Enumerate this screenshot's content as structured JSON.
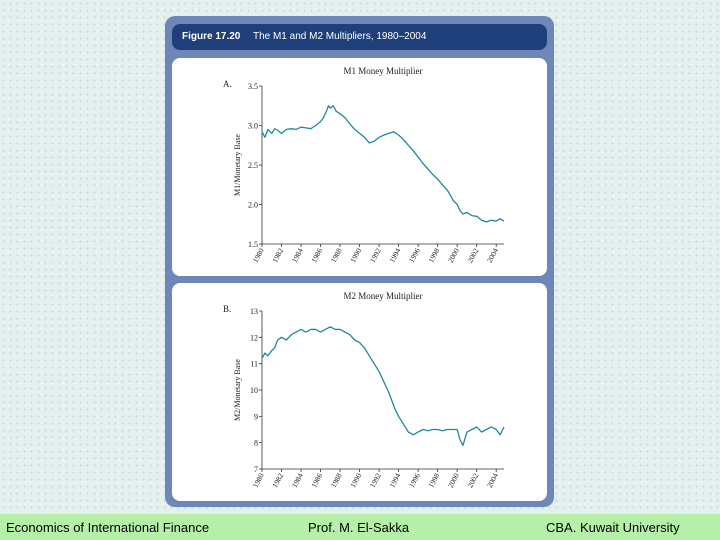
{
  "figure": {
    "number": "Figure 17.20",
    "title": "The M1 and M2 Multipliers, 1980–2004"
  },
  "footer": {
    "left": "Economics of International Finance",
    "center": "Prof. M. El-Sakka",
    "right": "CBA. Kuwait University"
  },
  "chart_data": [
    {
      "type": "line",
      "panel_label": "A.",
      "title": "M1 Money Multiplier",
      "xlabel": "",
      "ylabel": "M1/Monetary Base",
      "xlim": [
        1980,
        2004.8
      ],
      "ylim": [
        1.5,
        3.5
      ],
      "yticks": [
        1.5,
        2.0,
        2.5,
        3.0,
        3.5
      ],
      "ytick_labels": [
        "1.5",
        "2.0",
        "2.5",
        "3.0",
        "3.5"
      ],
      "xticks": [
        1980,
        1982,
        1984,
        1986,
        1988,
        1990,
        1992,
        1994,
        1996,
        1998,
        2000,
        2002,
        2004
      ],
      "line_color": "#1e8a9a",
      "x": [
        1980,
        1980.3,
        1980.6,
        1981,
        1981.3,
        1981.6,
        1982,
        1982.5,
        1983,
        1983.5,
        1984,
        1984.5,
        1985,
        1985.5,
        1986,
        1986.3,
        1986.6,
        1986.8,
        1987,
        1987.3,
        1987.6,
        1988,
        1988.5,
        1989,
        1989.5,
        1990,
        1990.5,
        1991,
        1991.5,
        1992,
        1992.5,
        1993,
        1993.5,
        1994,
        1994.5,
        1995,
        1995.5,
        1996,
        1996.5,
        1997,
        1997.5,
        1998,
        1998.5,
        1999,
        1999.3,
        1999.6,
        2000,
        2000.3,
        2000.6,
        2001,
        2001.5,
        2002,
        2002.5,
        2003,
        2003.5,
        2004,
        2004.4,
        2004.8
      ],
      "y": [
        2.92,
        2.85,
        2.95,
        2.9,
        2.96,
        2.94,
        2.9,
        2.95,
        2.96,
        2.95,
        2.98,
        2.97,
        2.96,
        3.0,
        3.05,
        3.1,
        3.18,
        3.25,
        3.22,
        3.25,
        3.18,
        3.15,
        3.1,
        3.02,
        2.95,
        2.9,
        2.85,
        2.78,
        2.8,
        2.85,
        2.88,
        2.9,
        2.92,
        2.88,
        2.82,
        2.75,
        2.68,
        2.6,
        2.52,
        2.45,
        2.38,
        2.32,
        2.25,
        2.18,
        2.12,
        2.05,
        2.0,
        1.92,
        1.88,
        1.9,
        1.86,
        1.85,
        1.8,
        1.78,
        1.8,
        1.79,
        1.82,
        1.79
      ]
    },
    {
      "type": "line",
      "panel_label": "B.",
      "title": "M2 Money Multiplier",
      "xlabel": "",
      "ylabel": "M2/Monetary Base",
      "xlim": [
        1980,
        2004.8
      ],
      "ylim": [
        7,
        13
      ],
      "yticks": [
        7,
        8,
        9,
        10,
        11,
        12,
        13
      ],
      "ytick_labels": [
        "7",
        "8",
        "9",
        "10",
        "11",
        "12",
        "13"
      ],
      "xticks": [
        1980,
        1982,
        1984,
        1986,
        1988,
        1990,
        1992,
        1994,
        1996,
        1998,
        2000,
        2002,
        2004
      ],
      "line_color": "#1e8a9a",
      "x": [
        1980,
        1980.3,
        1980.6,
        1981,
        1981.3,
        1981.6,
        1982,
        1982.5,
        1983,
        1983.5,
        1984,
        1984.5,
        1985,
        1985.5,
        1986,
        1986.5,
        1987,
        1987.5,
        1988,
        1988.5,
        1989,
        1989.5,
        1990,
        1990.5,
        1991,
        1991.5,
        1992,
        1992.5,
        1993,
        1993.3,
        1993.6,
        1994,
        1994.5,
        1995,
        1995.5,
        1996,
        1996.5,
        1997,
        1997.5,
        1998,
        1998.5,
        1999,
        1999.5,
        2000,
        2000.3,
        2000.6,
        2001,
        2001.5,
        2002,
        2002.5,
        2003,
        2003.5,
        2004,
        2004.4,
        2004.8
      ],
      "y": [
        11.2,
        11.4,
        11.3,
        11.5,
        11.6,
        11.9,
        12.0,
        11.9,
        12.1,
        12.2,
        12.3,
        12.2,
        12.3,
        12.3,
        12.2,
        12.3,
        12.4,
        12.3,
        12.3,
        12.2,
        12.1,
        11.9,
        11.8,
        11.6,
        11.3,
        11.0,
        10.7,
        10.3,
        9.9,
        9.6,
        9.3,
        9.0,
        8.7,
        8.4,
        8.3,
        8.4,
        8.5,
        8.45,
        8.5,
        8.5,
        8.45,
        8.5,
        8.5,
        8.5,
        8.1,
        7.9,
        8.4,
        8.5,
        8.6,
        8.4,
        8.5,
        8.6,
        8.5,
        8.3,
        8.6
      ]
    }
  ]
}
